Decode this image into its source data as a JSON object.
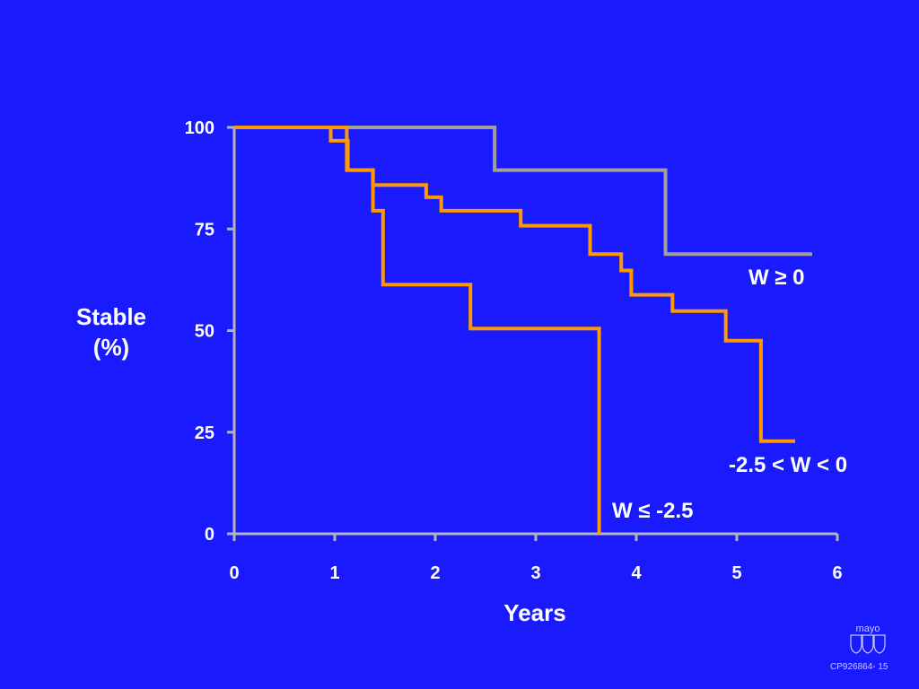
{
  "chart_data": {
    "type": "line",
    "step": true,
    "xlabel": "Years",
    "ylabel": [
      "Stable",
      "(%)"
    ],
    "xlim": [
      0,
      6
    ],
    "ylim": [
      0,
      100
    ],
    "xticks": [
      0,
      1,
      2,
      3,
      4,
      5,
      6
    ],
    "yticks": [
      0,
      25,
      50,
      75,
      100
    ],
    "series": [
      {
        "name": "W ≥ 0",
        "color": "#a0a0a0",
        "points": [
          [
            0,
            100
          ],
          [
            2.59,
            100
          ],
          [
            2.59,
            89.5
          ],
          [
            4.29,
            89.5
          ],
          [
            4.29,
            68.8
          ],
          [
            5.75,
            68.8
          ]
        ]
      },
      {
        "name": "-2.5 < W < 0",
        "color": "#ff9900",
        "points": [
          [
            0,
            100
          ],
          [
            1.12,
            100
          ],
          [
            1.12,
            89.5
          ],
          [
            1.38,
            89.5
          ],
          [
            1.38,
            85.8
          ],
          [
            1.91,
            85.8
          ],
          [
            1.91,
            82.8
          ],
          [
            2.06,
            82.8
          ],
          [
            2.06,
            79.5
          ],
          [
            2.85,
            79.5
          ],
          [
            2.85,
            75.8
          ],
          [
            3.54,
            75.8
          ],
          [
            3.54,
            68.8
          ],
          [
            3.85,
            68.8
          ],
          [
            3.85,
            64.8
          ],
          [
            3.95,
            64.8
          ],
          [
            3.95,
            58.8
          ],
          [
            4.36,
            58.8
          ],
          [
            4.36,
            54.8
          ],
          [
            4.89,
            54.8
          ],
          [
            4.89,
            47.5
          ],
          [
            5.24,
            47.5
          ],
          [
            5.24,
            22.8
          ],
          [
            5.58,
            22.8
          ]
        ]
      },
      {
        "name": "W ≤ -2.5",
        "color": "#ff9900",
        "points": [
          [
            0,
            100
          ],
          [
            0.96,
            100
          ],
          [
            0.96,
            96.7
          ],
          [
            1.13,
            96.7
          ],
          [
            1.13,
            89.5
          ],
          [
            1.38,
            89.5
          ],
          [
            1.38,
            79.5
          ],
          [
            1.48,
            79.5
          ],
          [
            1.48,
            61.3
          ],
          [
            2.35,
            61.3
          ],
          [
            2.35,
            50.5
          ],
          [
            3.63,
            50.5
          ],
          [
            3.63,
            0
          ]
        ]
      }
    ]
  },
  "branding": {
    "logo_text": "mayo",
    "slide_code": "CP926864- 15"
  }
}
